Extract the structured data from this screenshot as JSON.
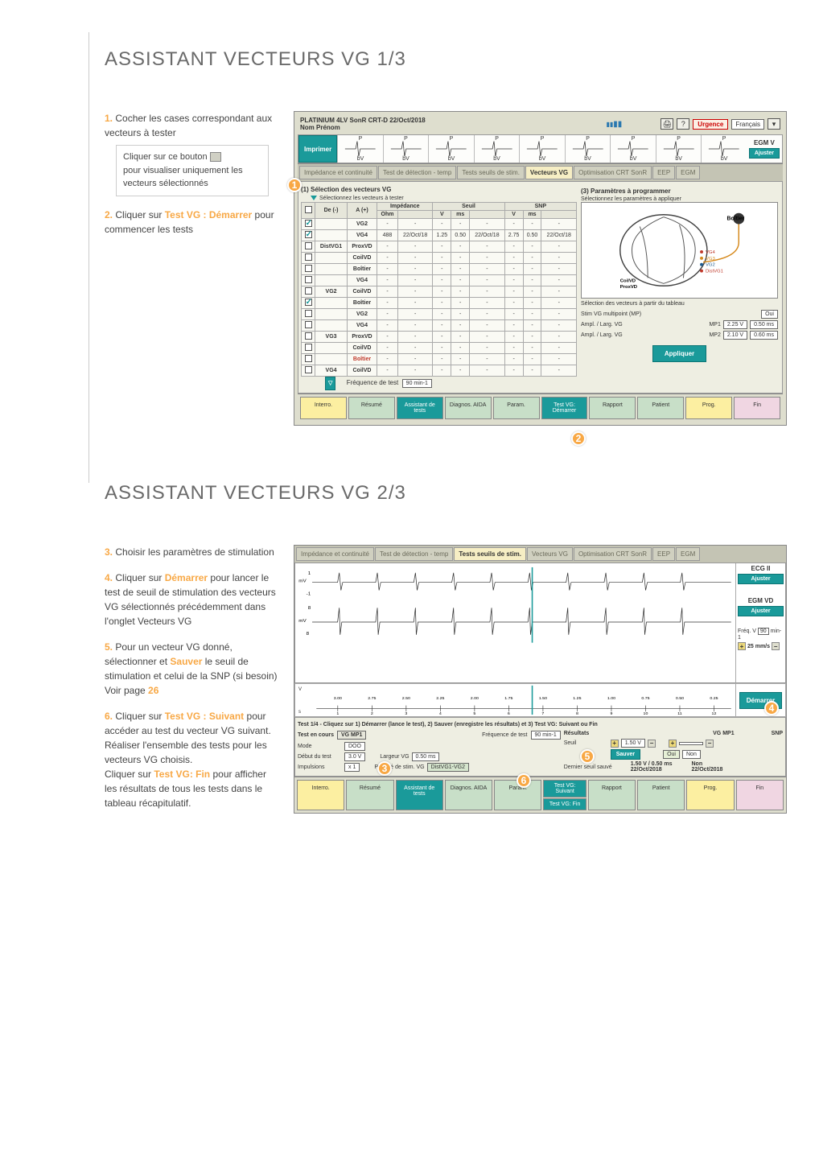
{
  "heading1": "ASSISTANT VECTEURS VG 1/3",
  "heading2": "ASSISTANT VECTEURS VG 2/3",
  "steps1": {
    "s1": {
      "num": "1.",
      "text": "Cocher les cases correspondant aux vecteurs à tester"
    },
    "hint": {
      "line1": "Cliquer sur ce bouton",
      "line2": "pour visualiser uniquement les vecteurs sélectionnés"
    },
    "s2": {
      "num": "2.",
      "pre": "Cliquer sur ",
      "kw": "Test VG : Démarrer",
      "post": " pour commencer les tests"
    }
  },
  "steps2": {
    "s3": {
      "num": "3.",
      "text": "Choisir les paramètres de stimulation"
    },
    "s4": {
      "num": "4.",
      "pre": "Cliquer sur ",
      "kw": "Démarrer",
      "post": " pour lancer le test de seuil de stimulation des vecteurs VG sélectionnés précédemment dans l'onglet Vecteurs VG"
    },
    "s5": {
      "num": "5.",
      "pre": "Pour un vecteur VG donné, sélectionner et ",
      "kw": "Sauver",
      "post": " le seuil de stimulation et celui de la SNP (si besoin) Voir page ",
      "page": "26"
    },
    "s6": {
      "num": "6.",
      "pre": "Cliquer sur ",
      "kw": "Test VG : Suivant",
      "post": " pour accéder au test du vecteur VG suivant.",
      "extra1": "Réaliser l'ensemble des tests pour les vecteurs VG choisis.",
      "extra2a": "Cliquer sur ",
      "kw2": "Test VG: Fin",
      "extra2b": " pour afficher les résultats de tous les tests dans le tableau récapitulatif."
    }
  },
  "ss1": {
    "title": "PLATINIUM 4LV SonR CRT-D  22/Oct/2018",
    "subtitle": "Nom Prénom",
    "urgence": "Urgence",
    "lang": "Français",
    "print": "Imprimer",
    "egmv": "EGM V",
    "ajuster": "Ajuster",
    "ecg_p": "P",
    "ecg_bv": "bV",
    "tabs": {
      "t1": "Impédance et continuité",
      "t2": "Test de détection - temp",
      "t3": "Tests seuils de stim.",
      "t4": "Vecteurs VG",
      "t5": "Optimisation CRT SonR",
      "t6": "EEP",
      "t7": "EGM"
    },
    "sec1": "(1) Sélection des vecteurs VG",
    "sub1": "Sélectionnez les vecteurs à tester",
    "sec3": "(3) Paramètres à programmer",
    "sub3": "Sélectionnez les paramètres à appliquer",
    "cols": {
      "de": "De (-)",
      "a": "A (+)",
      "imp": "Impédance",
      "ohm": "Ohm",
      "seuil": "Seuil",
      "snp": "SNP",
      "v": "V",
      "ms": "ms"
    },
    "rows": [
      {
        "chk": true,
        "de": "",
        "a": "VG2",
        "imp": "-",
        "d1": "-",
        "s_v": "-",
        "s_ms": "-",
        "s_d": "-",
        "p_v": "-",
        "p_ms": "-",
        "p_d": "-"
      },
      {
        "chk": true,
        "de": "",
        "a": "VG4",
        "imp": "488",
        "d1": "22/Oct/18",
        "s_v": "1.25",
        "s_ms": "0.50",
        "s_d": "22/Oct/18",
        "p_v": "2.75",
        "p_ms": "0.50",
        "p_d": "22/Oct/18"
      },
      {
        "chk": false,
        "de": "DistVG1",
        "a": "ProxVD",
        "imp": "-",
        "d1": "-",
        "s_v": "-",
        "s_ms": "-",
        "s_d": "-",
        "p_v": "-",
        "p_ms": "-",
        "p_d": "-"
      },
      {
        "chk": false,
        "de": "",
        "a": "CoilVD",
        "imp": "-",
        "d1": "-",
        "s_v": "-",
        "s_ms": "-",
        "s_d": "-",
        "p_v": "-",
        "p_ms": "-",
        "p_d": "-"
      },
      {
        "chk": false,
        "de": "",
        "a": "Boîtier",
        "imp": "-",
        "d1": "-",
        "s_v": "-",
        "s_ms": "-",
        "s_d": "-",
        "p_v": "-",
        "p_ms": "-",
        "p_d": "-"
      },
      {
        "chk": false,
        "de": "",
        "a": "VG4",
        "imp": "-",
        "d1": "-",
        "s_v": "-",
        "s_ms": "-",
        "s_d": "-",
        "p_v": "-",
        "p_ms": "-",
        "p_d": "-"
      },
      {
        "chk": false,
        "de": "VG2",
        "a": "CoilVD",
        "imp": "-",
        "d1": "-",
        "s_v": "-",
        "s_ms": "-",
        "s_d": "-",
        "p_v": "-",
        "p_ms": "-",
        "p_d": "-"
      },
      {
        "chk": true,
        "de": "",
        "a": "Boîtier",
        "imp": "-",
        "d1": "-",
        "s_v": "-",
        "s_ms": "-",
        "s_d": "-",
        "p_v": "-",
        "p_ms": "-",
        "p_d": "-"
      },
      {
        "chk": false,
        "de": "",
        "a": "VG2",
        "imp": "-",
        "d1": "-",
        "s_v": "-",
        "s_ms": "-",
        "s_d": "-",
        "p_v": "-",
        "p_ms": "-",
        "p_d": "-"
      },
      {
        "chk": false,
        "de": "",
        "a": "VG4",
        "imp": "-",
        "d1": "-",
        "s_v": "-",
        "s_ms": "-",
        "s_d": "-",
        "p_v": "-",
        "p_ms": "-",
        "p_d": "-"
      },
      {
        "chk": false,
        "de": "VG3",
        "a": "ProxVD",
        "imp": "-",
        "d1": "-",
        "s_v": "-",
        "s_ms": "-",
        "s_d": "-",
        "p_v": "-",
        "p_ms": "-",
        "p_d": "-"
      },
      {
        "chk": false,
        "de": "",
        "a": "CoilVD",
        "imp": "-",
        "d1": "-",
        "s_v": "-",
        "s_ms": "-",
        "s_d": "-",
        "p_v": "-",
        "p_ms": "-",
        "p_d": "-"
      },
      {
        "chk": false,
        "de": "",
        "a": "Boîtier",
        "imp": "-",
        "d1": "-",
        "s_v": "-",
        "s_ms": "-",
        "s_d": "-",
        "p_v": "-",
        "p_ms": "-",
        "p_d": "-",
        "red": true
      },
      {
        "chk": false,
        "de": "VG4",
        "a": "CoilVD",
        "imp": "-",
        "d1": "-",
        "s_v": "-",
        "s_ms": "-",
        "s_d": "-",
        "p_v": "-",
        "p_ms": "-",
        "p_d": "-"
      }
    ],
    "mp1": "MP1",
    "mp2": "MP2",
    "freq_label": "Fréquence de test",
    "freq_val": "90 min-1",
    "boitier": "Boîtier",
    "heart_labels": {
      "vg4": "VG4",
      "vg3": "VG3",
      "vg2": "VG2",
      "distvg1": "DistVG1",
      "coilvd": "CoilVD",
      "proxvd": "ProxVD"
    },
    "sel_from_table": "Sélection des vecteurs à partir du tableau",
    "stim_mp": "Stim VG multipoint (MP)",
    "oui": "Oui",
    "ampl1_lbl": "Ampl. / Larg. VG",
    "ampl1_mp": "MP1",
    "ampl1_v": "2.25 V",
    "ampl1_ms": "0.50 ms",
    "ampl2_mp": "MP2",
    "ampl2_v": "2.10 V",
    "ampl2_ms": "0.60 ms",
    "appliquer": "Appliquer",
    "bbar": {
      "interro": "Interro.",
      "resume": "Résumé",
      "assist": "Assistant de tests",
      "diag": "Diagnos. AIDA",
      "param": "Param.",
      "test": "Test VG: Démarrer",
      "rapport": "Rapport",
      "patient": "Patient",
      "prog": "Prog.",
      "fin": "Fin"
    }
  },
  "ss2": {
    "tabs": {
      "t1": "Impédance et continuité",
      "t2": "Test de détection - temp",
      "t3": "Tests seuils de stim.",
      "t4": "Vecteurs VG",
      "t5": "Optimisation CRT SonR",
      "t6": "EEP",
      "t7": "EGM"
    },
    "ecg2": "ECG II",
    "ajuster": "Ajuster",
    "egmvd": "EGM VD",
    "freqv": "Fréq. V",
    "freqv_val": "90",
    "freqv_unit": "min-1",
    "speed": "25 mm/s",
    "demarrer": "Démarrer",
    "mv": "mV",
    "scale_vals": [
      "3.00",
      "2.75",
      "2.50",
      "2.25",
      "2.00",
      "1.75",
      "1.50",
      "1.25",
      "1.00",
      "0.75",
      "0.50",
      "0.25"
    ],
    "scale_v": "V",
    "scale_s": "s",
    "instr": "Test 1/4 - Cliquez sur 1) Démarrer (lance le test), 2) Sauver (enregistre les résultats) et 3) Test VG: Suivant ou Fin",
    "test_en_cours": "Test en cours",
    "vgmp1": "VG MP1",
    "freq_lbl": "Fréquence de test",
    "freq_val": "90 min-1",
    "mode_lbl": "Mode",
    "mode_val": "DOO",
    "debut_lbl": "Début du test",
    "debut_val": "3.0 V",
    "larg_lbl": "Largeur VG",
    "larg_val": "0.50 ms",
    "impuls_lbl": "Impulsions",
    "impuls_val": "x 1",
    "polar_lbl": "Polarité de stim. VG",
    "polar_val": "DistVG1-VG2",
    "resultats": "Résultats",
    "vgmp1_r": "VG MP1",
    "snp": "SNP",
    "seuil_lbl": "Seuil",
    "seuil_val": "1.50 V",
    "sauver": "Sauver",
    "oui": "Oui",
    "non": "Non",
    "dernier_lbl": "Dernier seuil sauvé",
    "dernier_val": "1.50 V / 0.50 ms",
    "dernier_date": "22/Oct/2018",
    "dernier_non": "Non",
    "dernier_nondate": "22/Oct/2018",
    "bbar": {
      "interro": "Interro.",
      "resume": "Résumé",
      "assist": "Assistant de tests",
      "diag": "Diagnos. AIDA",
      "param": "Param.",
      "suivant": "Test VG: Suivant",
      "fin": "Test VG: Fin",
      "rapport": "Rapport",
      "patient": "Patient",
      "prog": "Prog.",
      "fin2": "Fin"
    }
  }
}
